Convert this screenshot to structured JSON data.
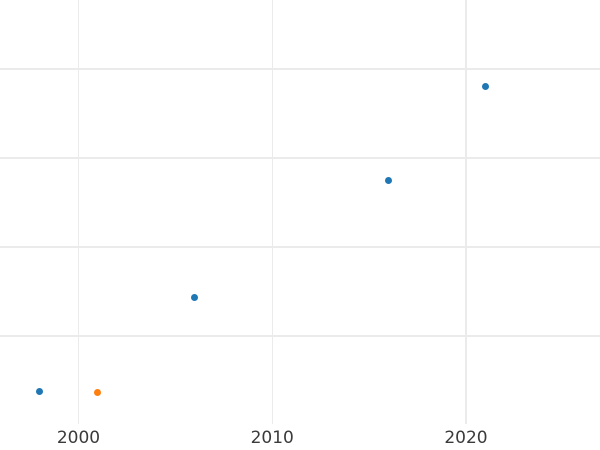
{
  "chart_data": {
    "type": "scatter",
    "title": "",
    "xlabel": "",
    "ylabel": "",
    "x_ticks": [
      2000,
      2010,
      2020
    ],
    "x_tick_labels": [
      "2000",
      "2010",
      "2020"
    ],
    "y_tick_labels_visible": false,
    "y_gridline_units": [
      1,
      2,
      3,
      4
    ],
    "xlim_visible": [
      1995.9,
      2026.9
    ],
    "ylim_visible": [
      0,
      4.76
    ],
    "grid": true,
    "legend": "none",
    "series": [
      {
        "name": "blue-series",
        "color": "#1f77b4",
        "points": [
          {
            "x": 1998,
            "y": 0.37
          },
          {
            "x": 2006,
            "y": 1.43
          },
          {
            "x": 2016,
            "y": 2.74
          },
          {
            "x": 2021,
            "y": 3.8
          }
        ]
      },
      {
        "name": "orange-series",
        "color": "#ff7f0e",
        "points": [
          {
            "x": 2001,
            "y": 0.36
          }
        ]
      }
    ],
    "note": "y-axis tick labels are not visible in the screenshot; y values expressed in gridline units (lowest visible gridline = 1, spacing = 1 unit)"
  },
  "style_colors": {
    "background": "#ffffff",
    "gridline": "#ebebeb",
    "tick_label": "#3b3b3b"
  }
}
